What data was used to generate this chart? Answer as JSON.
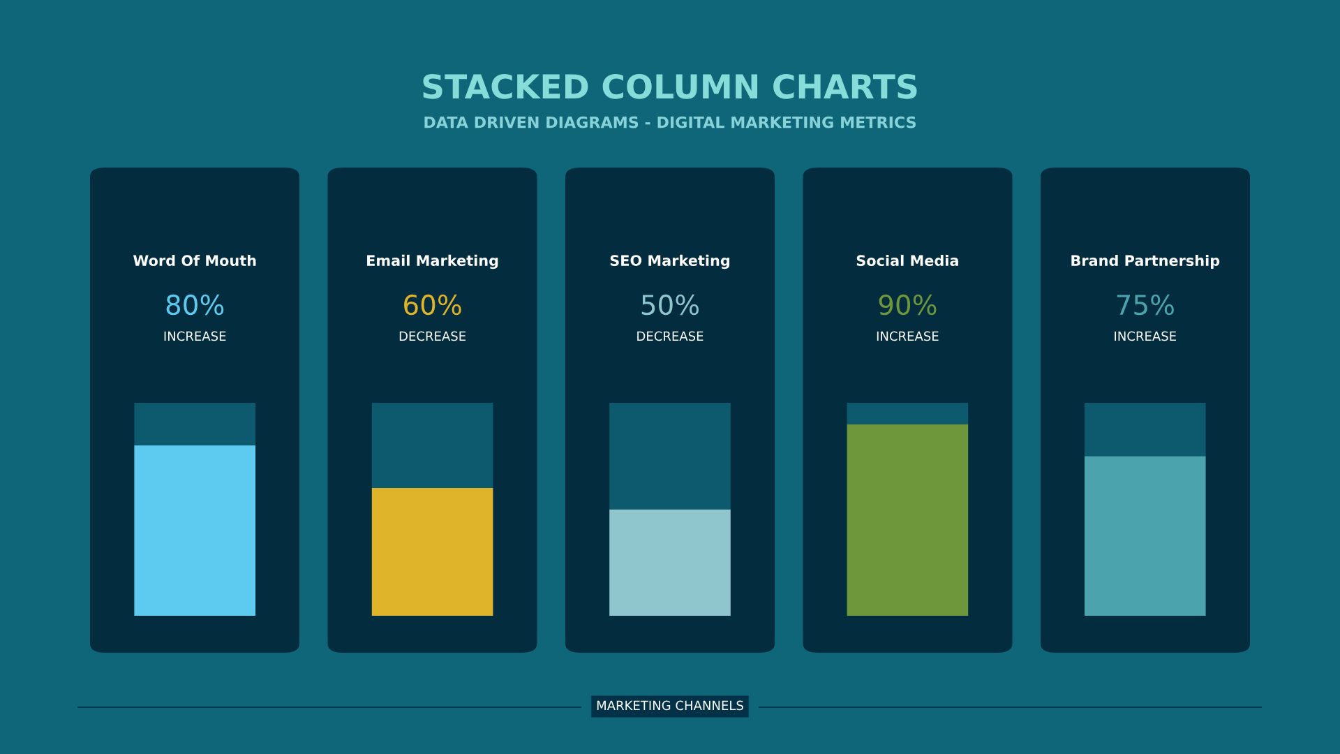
{
  "chart_data": {
    "type": "bar",
    "stacked": true,
    "title": "STACKED COLUMN CHARTS",
    "subtitle": "DATA DRIVEN DIAGRAMS - DIGITAL MARKETING METRICS",
    "categories": [
      "Word Of Mouth",
      "Email Marketing",
      "SEO Marketing",
      "Social Media",
      "Brand Partnership"
    ],
    "series": [
      {
        "colors": [
          "#5ccbef",
          "#e0b42a",
          "#8fc6cd",
          "#6e973c",
          "#4aa3ad"
        ],
        "values": [
          80,
          60,
          50,
          90,
          75
        ],
        "value_labels": [
          "80%",
          "60%",
          "50%",
          "90%",
          "75%"
        ]
      },
      {
        "color": "#0d5a6e",
        "values": [
          20,
          40,
          50,
          10,
          25
        ]
      }
    ],
    "annotations": [
      "INCREASE",
      "DECREASE",
      "DECREASE",
      "INCREASE",
      "INCREASE",
      "MARKETING CHANNELS"
    ]
  }
}
